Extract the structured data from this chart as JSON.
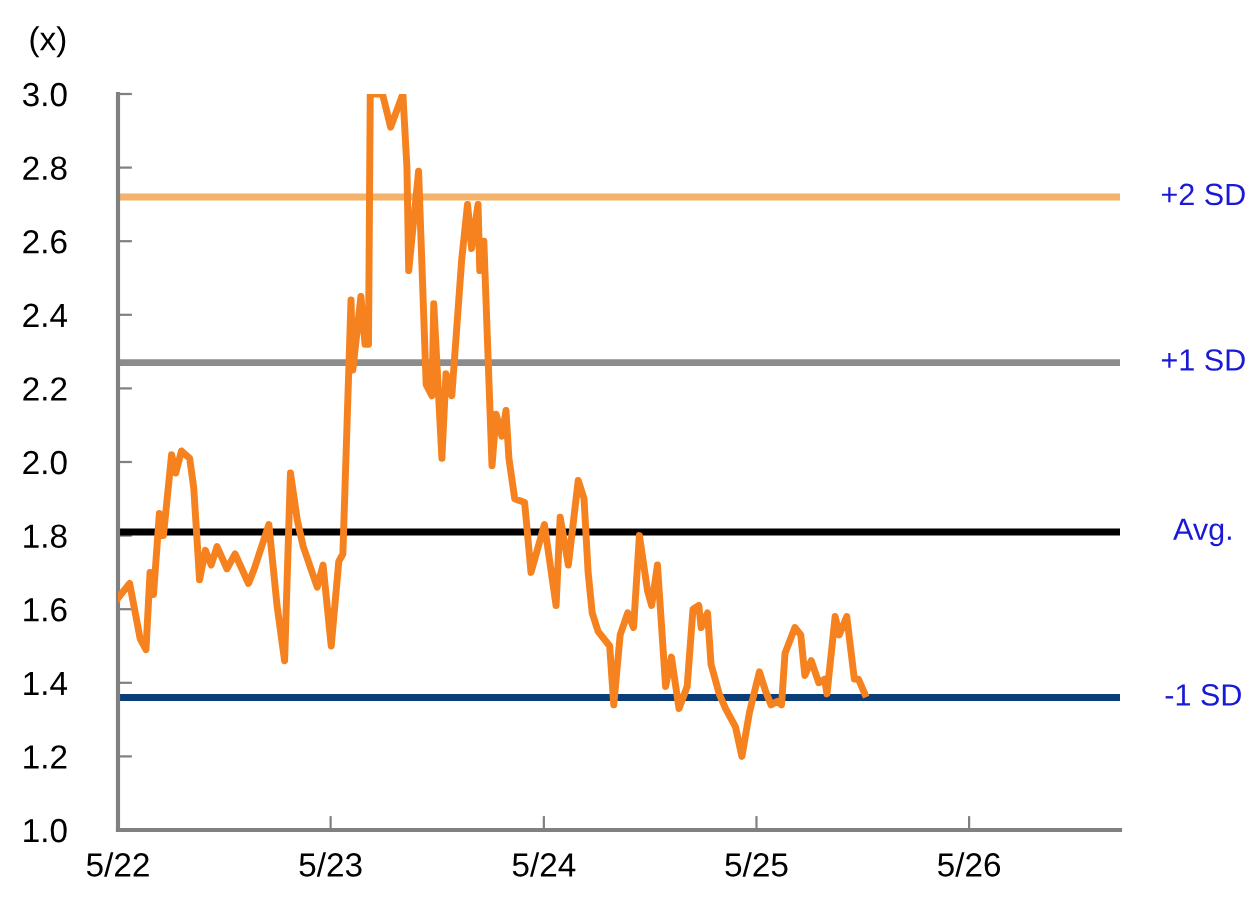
{
  "chart_data": {
    "type": "line",
    "ylabel": "(x)",
    "x": [
      "2022-05-01",
      "2022-05-21",
      "2022-06-08",
      "2022-06-18",
      "2022-06-25",
      "2022-07-01",
      "2022-07-11",
      "2022-07-18",
      "2022-08-01",
      "2022-08-08",
      "2022-08-18",
      "2022-09-01",
      "2022-09-08",
      "2022-09-18",
      "2022-09-28",
      "2022-10-08",
      "2022-10-18",
      "2022-11-04",
      "2022-11-18",
      "2022-12-11",
      "2022-12-21",
      "2023-01-15",
      "2023-01-29",
      "2023-02-11",
      "2023-02-21",
      "2023-03-05",
      "2023-03-15",
      "2023-04-08",
      "2023-04-18",
      "2023-05-02",
      "2023-05-15",
      "2023-05-22",
      "2023-06-05",
      "2023-06-08",
      "2023-06-22",
      "2023-06-29",
      "2023-07-05",
      "2023-07-08",
      "2023-07-29",
      "2023-08-12",
      "2023-09-02",
      "2023-09-09",
      "2023-09-12",
      "2023-09-29",
      "2023-10-12",
      "2023-10-22",
      "2023-10-25",
      "2023-11-08",
      "2023-11-15",
      "2023-11-25",
      "2023-12-12",
      "2023-12-22",
      "2023-12-29",
      "2024-01-09",
      "2024-01-12",
      "2024-01-19",
      "2024-02-02",
      "2024-02-09",
      "2024-02-19",
      "2024-02-26",
      "2024-03-02",
      "2024-03-12",
      "2024-03-29",
      "2024-04-09",
      "2024-05-02",
      "2024-05-22",
      "2024-05-29",
      "2024-06-12",
      "2024-06-29",
      "2024-07-09",
      "2024-07-16",
      "2024-07-23",
      "2024-08-02",
      "2024-08-22",
      "2024-08-29",
      "2024-09-09",
      "2024-09-22",
      "2024-10-02",
      "2024-10-12",
      "2024-10-26",
      "2024-11-02",
      "2024-11-12",
      "2024-11-26",
      "2024-12-06",
      "2024-12-19",
      "2025-01-02",
      "2025-01-12",
      "2025-01-22",
      "2025-01-26",
      "2025-02-06",
      "2025-02-12",
      "2025-02-26",
      "2025-03-09",
      "2025-03-26",
      "2025-04-06",
      "2025-04-19",
      "2025-05-06",
      "2025-05-16",
      "2025-05-26",
      "2025-06-06",
      "2025-06-13",
      "2025-06-19",
      "2025-07-06",
      "2025-07-16",
      "2025-07-23",
      "2025-08-03",
      "2025-08-16",
      "2025-08-26",
      "2025-08-30",
      "2025-09-13",
      "2025-09-20",
      "2025-10-03",
      "2025-10-16",
      "2025-10-23",
      "2025-11-03"
    ],
    "series": [
      {
        "color": "#f5821f",
        "values": [
          1.63,
          1.67,
          1.52,
          1.49,
          1.7,
          1.64,
          1.86,
          1.8,
          2.02,
          1.97,
          2.03,
          2.01,
          1.93,
          1.68,
          1.76,
          1.72,
          1.77,
          1.71,
          1.75,
          1.67,
          1.71,
          1.83,
          1.61,
          1.46,
          1.97,
          1.84,
          1.77,
          1.66,
          1.72,
          1.5,
          1.73,
          1.75,
          2.44,
          2.25,
          2.45,
          2.32,
          2.32,
          3.0,
          3.0,
          2.91,
          3.0,
          2.8,
          2.52,
          2.79,
          2.21,
          2.18,
          2.43,
          2.01,
          2.24,
          2.18,
          2.55,
          2.7,
          2.58,
          2.7,
          2.52,
          2.6,
          1.99,
          2.13,
          2.07,
          2.14,
          2.01,
          1.9,
          1.89,
          1.7,
          1.83,
          1.61,
          1.85,
          1.72,
          1.95,
          1.9,
          1.7,
          1.59,
          1.54,
          1.5,
          1.34,
          1.53,
          1.59,
          1.55,
          1.8,
          1.65,
          1.61,
          1.72,
          1.39,
          1.47,
          1.33,
          1.39,
          1.6,
          1.61,
          1.55,
          1.59,
          1.45,
          1.37,
          1.33,
          1.28,
          1.2,
          1.32,
          1.43,
          1.38,
          1.34,
          1.35,
          1.34,
          1.48,
          1.55,
          1.53,
          1.42,
          1.46,
          1.4,
          1.41,
          1.37,
          1.58,
          1.53,
          1.58,
          1.41,
          1.41,
          1.37
        ]
      }
    ],
    "ylim": [
      1.0,
      3.0
    ],
    "yticks": [
      {
        "value": 1.0,
        "label": "1.0"
      },
      {
        "value": 1.2,
        "label": "1.2"
      },
      {
        "value": 1.4,
        "label": "1.4"
      },
      {
        "value": 1.6,
        "label": "1.6"
      },
      {
        "value": 1.8,
        "label": "1.8"
      },
      {
        "value": 2.0,
        "label": "2.0"
      },
      {
        "value": 2.2,
        "label": "2.2"
      },
      {
        "value": 2.4,
        "label": "2.4"
      },
      {
        "value": 2.6,
        "label": "2.6"
      },
      {
        "value": 2.8,
        "label": "2.8"
      },
      {
        "value": 3.0,
        "label": "3.0"
      }
    ],
    "xlim": [
      "2022-05-01",
      "2027-01-15"
    ],
    "xticks": [
      {
        "value": "2022-05-01",
        "label": "5/22"
      },
      {
        "value": "2023-05-01",
        "label": "5/23"
      },
      {
        "value": "2024-05-01",
        "label": "5/24"
      },
      {
        "value": "2025-05-01",
        "label": "5/25"
      },
      {
        "value": "2026-05-01",
        "label": "5/26"
      }
    ],
    "ref_lines": [
      {
        "axis": "y",
        "value": 2.72,
        "label": "+2 SD",
        "color": "#f4b26b"
      },
      {
        "axis": "y",
        "value": 2.27,
        "label": "+1 SD",
        "color": "#8c8c8c"
      },
      {
        "axis": "y",
        "value": 1.81,
        "label": "Avg.",
        "color": "#000000"
      },
      {
        "axis": "y",
        "value": 1.36,
        "label": "-1 SD",
        "color": "#0b3d78"
      }
    ],
    "grid": false,
    "legend": false
  }
}
